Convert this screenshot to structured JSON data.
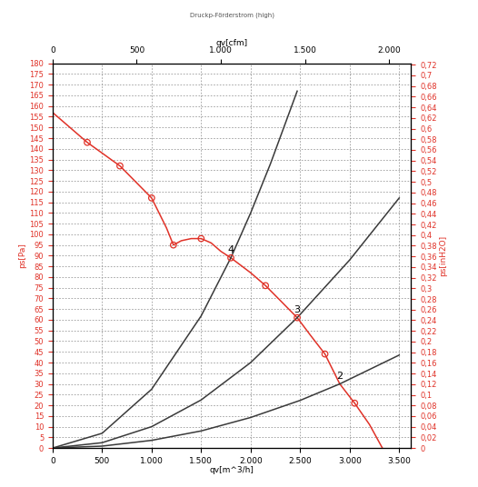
{
  "chart_data": {
    "type": "line",
    "title": "Druckp-Förderstrom (high)",
    "x_label": "qv[m^3/h]",
    "x2_label": "qv[cfm]",
    "y_label": "ps[Pa]",
    "y2_label": "ps[inH2O]",
    "xlim": [
      0,
      3620
    ],
    "xticks": [
      0,
      500,
      {
        "value": 1000,
        "label": "1.000"
      },
      {
        "value": 1500,
        "label": "1.500"
      },
      {
        "value": 2000,
        "label": "2.000"
      },
      {
        "value": 2500,
        "label": "2.500"
      },
      {
        "value": 3000,
        "label": "3.000"
      },
      {
        "value": 3500,
        "label": "3.500"
      }
    ],
    "x2lim": [
      0,
      2131
    ],
    "x2ticks": [
      0,
      500,
      {
        "value": 1000,
        "label": "1.000"
      },
      {
        "value": 1500,
        "label": "1.500"
      },
      {
        "value": 2000,
        "label": "2.000"
      }
    ],
    "ylim": [
      0,
      180
    ],
    "yticks": [
      0,
      5,
      10,
      15,
      20,
      25,
      30,
      35,
      40,
      45,
      50,
      55,
      60,
      65,
      70,
      75,
      80,
      85,
      90,
      95,
      100,
      105,
      110,
      115,
      120,
      125,
      130,
      135,
      140,
      145,
      150,
      155,
      160,
      165,
      170,
      175,
      180
    ],
    "y2lim": [
      0,
      0.7226
    ],
    "y2ticks": [
      0,
      {
        "value": 0.02,
        "label": "0,02"
      },
      {
        "value": 0.04,
        "label": "0,04"
      },
      {
        "value": 0.06,
        "label": "0,06"
      },
      {
        "value": 0.08,
        "label": "0,08"
      },
      {
        "value": 0.1,
        "label": "0,1"
      },
      {
        "value": 0.12,
        "label": "0,12"
      },
      {
        "value": 0.14,
        "label": "0,14"
      },
      {
        "value": 0.16,
        "label": "0,16"
      },
      {
        "value": 0.18,
        "label": "0,18"
      },
      {
        "value": 0.2,
        "label": "0,2"
      },
      {
        "value": 0.22,
        "label": "0,22"
      },
      {
        "value": 0.24,
        "label": "0,24"
      },
      {
        "value": 0.26,
        "label": "0,26"
      },
      {
        "value": 0.28,
        "label": "0,28"
      },
      {
        "value": 0.3,
        "label": "0,3"
      },
      {
        "value": 0.32,
        "label": "0,32"
      },
      {
        "value": 0.34,
        "label": "0,34"
      },
      {
        "value": 0.36,
        "label": "0,36"
      },
      {
        "value": 0.38,
        "label": "0,38"
      },
      {
        "value": 0.4,
        "label": "0,4"
      },
      {
        "value": 0.42,
        "label": "0,42"
      },
      {
        "value": 0.44,
        "label": "0,44"
      },
      {
        "value": 0.46,
        "label": "0,46"
      },
      {
        "value": 0.48,
        "label": "0,48"
      },
      {
        "value": 0.5,
        "label": "0,5"
      },
      {
        "value": 0.52,
        "label": "0,52"
      },
      {
        "value": 0.54,
        "label": "0,54"
      },
      {
        "value": 0.56,
        "label": "0,56"
      },
      {
        "value": 0.58,
        "label": "0,58"
      },
      {
        "value": 0.6,
        "label": "0,6"
      },
      {
        "value": 0.62,
        "label": "0,62"
      },
      {
        "value": 0.64,
        "label": "0,64"
      },
      {
        "value": 0.66,
        "label": "0,66"
      },
      {
        "value": 0.68,
        "label": "0,68"
      },
      {
        "value": 0.7,
        "label": "0,7"
      },
      {
        "value": 0.72,
        "label": "0,72"
      }
    ],
    "grid": true,
    "series": [
      {
        "type": "line",
        "color": "#e03228",
        "line_style": "solid",
        "x": [
          0,
          350,
          680,
          1000,
          1150,
          1220,
          1300,
          1400,
          1500,
          1600,
          1700,
          1800,
          2000,
          2150,
          2300,
          2470,
          2600,
          2750,
          2900,
          3050,
          3200,
          3330
        ],
        "values": [
          157,
          143,
          132,
          117,
          103,
          95,
          97,
          98,
          98,
          96,
          92,
          89,
          82,
          76,
          69,
          61,
          53,
          44,
          30,
          21,
          11,
          0
        ]
      },
      {
        "type": "scatter",
        "color": "#e03228",
        "marker": "o",
        "x": [
          350,
          680,
          1000,
          1220,
          1500,
          1800,
          2150,
          2470,
          2750,
          3050
        ],
        "values": [
          143,
          132,
          117,
          95,
          98,
          89,
          76,
          61,
          44,
          21
        ]
      },
      {
        "type": "line",
        "color": "#3a3a3a",
        "line_style": "solid",
        "x": [
          0,
          500,
          1000,
          1500,
          1800,
          2000,
          2200,
          2470
        ],
        "values": [
          0,
          6.9,
          27.5,
          61.8,
          89,
          110,
          133,
          167
        ]
      },
      {
        "type": "line",
        "color": "#3a3a3a",
        "line_style": "solid",
        "x": [
          0,
          500,
          1000,
          1500,
          2000,
          2470,
          3000,
          3500
        ],
        "values": [
          0,
          2.5,
          10,
          22.5,
          40,
          61,
          88,
          117
        ]
      },
      {
        "type": "line",
        "color": "#3a3a3a",
        "line_style": "solid",
        "x": [
          0,
          500,
          1000,
          1500,
          2000,
          2500,
          2900,
          3500
        ],
        "values": [
          0,
          0.9,
          3.6,
          8,
          14.3,
          22.3,
          30,
          43.5
        ]
      }
    ],
    "annotations": [
      {
        "text": "4",
        "x": 1800,
        "y": 89
      },
      {
        "text": "3",
        "x": 2470,
        "y": 61
      },
      {
        "text": "2",
        "x": 2900,
        "y": 30
      }
    ]
  }
}
